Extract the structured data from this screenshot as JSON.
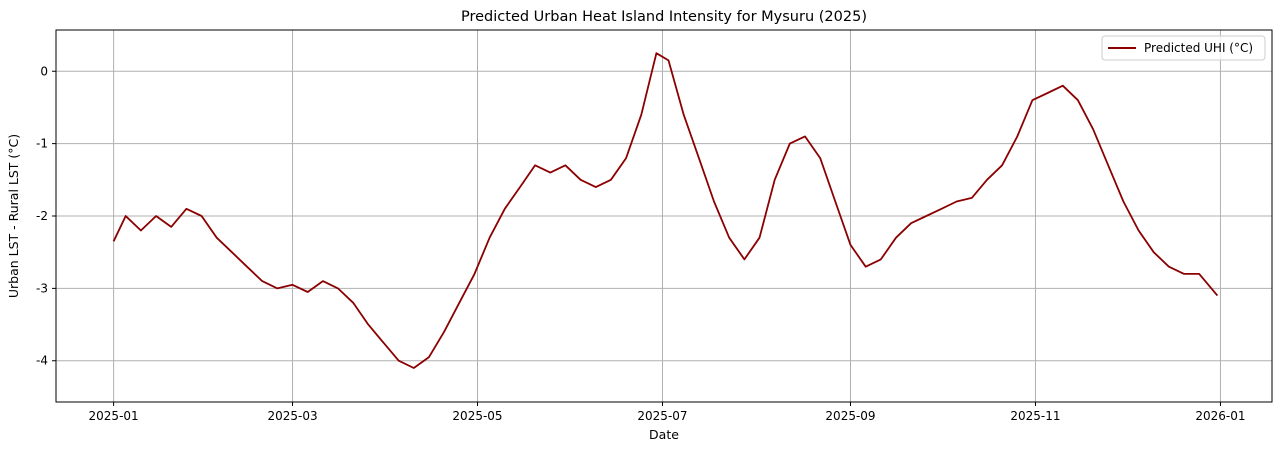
{
  "chart_data": {
    "type": "line",
    "title": "Predicted Urban Heat Island Intensity for Mysuru (2025)",
    "xlabel": "Date",
    "ylabel": "Urban LST - Rural LST (°C)",
    "x_axis": {
      "type": "date",
      "range": [
        "2024-12-13",
        "2026-01-18"
      ],
      "ticks": [
        "2025-01-01",
        "2025-03-01",
        "2025-05-01",
        "2025-07-01",
        "2025-09-01",
        "2025-11-01",
        "2026-01-01"
      ],
      "tick_labels": [
        "2025-01",
        "2025-03",
        "2025-05",
        "2025-07",
        "2025-09",
        "2025-11",
        "2026-01"
      ]
    },
    "y_axis": {
      "range": [
        -4.57,
        0.57
      ],
      "ticks": [
        0,
        -1,
        -2,
        -3,
        -4
      ],
      "tick_labels": [
        "0",
        "-1",
        "-2",
        "-3",
        "-4"
      ]
    },
    "grid": true,
    "legend": {
      "position": "top-right"
    },
    "series": [
      {
        "name": "Predicted UHI (°C)",
        "color": "#8b0000",
        "points": [
          [
            "2025-01-01",
            -2.35
          ],
          [
            "2025-01-05",
            -2.0
          ],
          [
            "2025-01-10",
            -2.2
          ],
          [
            "2025-01-15",
            -2.0
          ],
          [
            "2025-01-20",
            -2.15
          ],
          [
            "2025-01-25",
            -1.9
          ],
          [
            "2025-01-30",
            -2.0
          ],
          [
            "2025-02-04",
            -2.3
          ],
          [
            "2025-02-09",
            -2.5
          ],
          [
            "2025-02-14",
            -2.7
          ],
          [
            "2025-02-19",
            -2.9
          ],
          [
            "2025-02-24",
            -3.0
          ],
          [
            "2025-03-01",
            -2.95
          ],
          [
            "2025-03-06",
            -3.05
          ],
          [
            "2025-03-11",
            -2.9
          ],
          [
            "2025-03-16",
            -3.0
          ],
          [
            "2025-03-21",
            -3.2
          ],
          [
            "2025-03-26",
            -3.5
          ],
          [
            "2025-03-31",
            -3.75
          ],
          [
            "2025-04-05",
            -4.0
          ],
          [
            "2025-04-10",
            -4.1
          ],
          [
            "2025-04-15",
            -3.95
          ],
          [
            "2025-04-20",
            -3.6
          ],
          [
            "2025-04-25",
            -3.2
          ],
          [
            "2025-04-30",
            -2.8
          ],
          [
            "2025-05-05",
            -2.3
          ],
          [
            "2025-05-10",
            -1.9
          ],
          [
            "2025-05-15",
            -1.6
          ],
          [
            "2025-05-20",
            -1.3
          ],
          [
            "2025-05-25",
            -1.4
          ],
          [
            "2025-05-30",
            -1.3
          ],
          [
            "2025-06-04",
            -1.5
          ],
          [
            "2025-06-09",
            -1.6
          ],
          [
            "2025-06-14",
            -1.5
          ],
          [
            "2025-06-19",
            -1.2
          ],
          [
            "2025-06-24",
            -0.6
          ],
          [
            "2025-06-29",
            0.25
          ],
          [
            "2025-07-03",
            0.15
          ],
          [
            "2025-07-08",
            -0.6
          ],
          [
            "2025-07-13",
            -1.2
          ],
          [
            "2025-07-18",
            -1.8
          ],
          [
            "2025-07-23",
            -2.3
          ],
          [
            "2025-07-28",
            -2.6
          ],
          [
            "2025-08-02",
            -2.3
          ],
          [
            "2025-08-07",
            -1.5
          ],
          [
            "2025-08-12",
            -1.0
          ],
          [
            "2025-08-17",
            -0.9
          ],
          [
            "2025-08-22",
            -1.2
          ],
          [
            "2025-08-27",
            -1.8
          ],
          [
            "2025-09-01",
            -2.4
          ],
          [
            "2025-09-06",
            -2.7
          ],
          [
            "2025-09-11",
            -2.6
          ],
          [
            "2025-09-16",
            -2.3
          ],
          [
            "2025-09-21",
            -2.1
          ],
          [
            "2025-09-26",
            -2.0
          ],
          [
            "2025-10-01",
            -1.9
          ],
          [
            "2025-10-06",
            -1.8
          ],
          [
            "2025-10-11",
            -1.75
          ],
          [
            "2025-10-16",
            -1.5
          ],
          [
            "2025-10-21",
            -1.3
          ],
          [
            "2025-10-26",
            -0.9
          ],
          [
            "2025-10-31",
            -0.4
          ],
          [
            "2025-11-05",
            -0.3
          ],
          [
            "2025-11-10",
            -0.2
          ],
          [
            "2025-11-15",
            -0.4
          ],
          [
            "2025-11-20",
            -0.8
          ],
          [
            "2025-11-25",
            -1.3
          ],
          [
            "2025-11-30",
            -1.8
          ],
          [
            "2025-12-05",
            -2.2
          ],
          [
            "2025-12-10",
            -2.5
          ],
          [
            "2025-12-15",
            -2.7
          ],
          [
            "2025-12-20",
            -2.8
          ],
          [
            "2025-12-25",
            -2.8
          ],
          [
            "2025-12-31",
            -3.1
          ]
        ]
      }
    ]
  }
}
